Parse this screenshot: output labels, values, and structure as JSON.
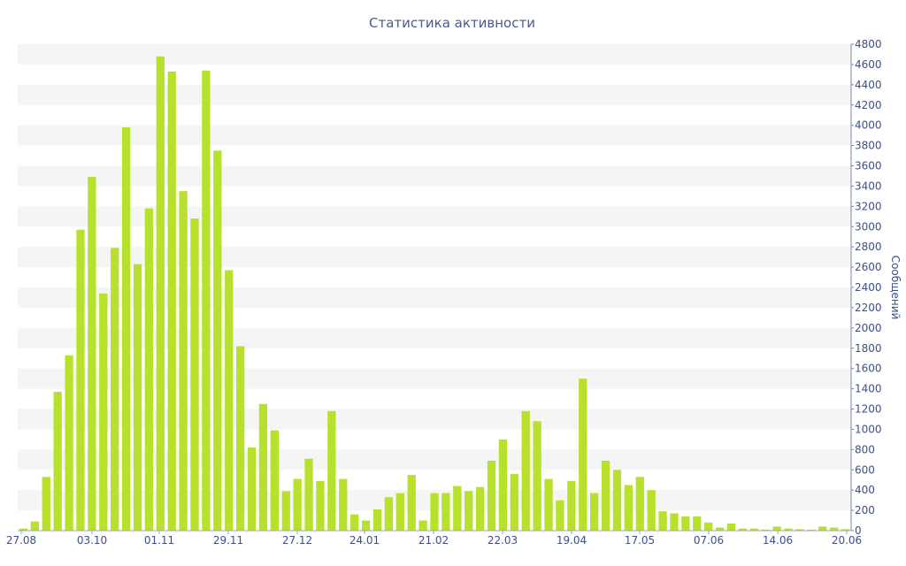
{
  "chart_data": {
    "type": "bar",
    "title": "Статистика активности",
    "xlabel": "",
    "ylabel": "Сообщений",
    "ylim": [
      0,
      4800
    ],
    "y_ticks": [
      0,
      200,
      400,
      600,
      800,
      1000,
      1200,
      1400,
      1600,
      1800,
      2000,
      2200,
      2400,
      2600,
      2800,
      3000,
      3200,
      3400,
      3600,
      3800,
      4000,
      4200,
      4400,
      4600,
      4800
    ],
    "x_tick_labels": [
      "27.08",
      "03.10",
      "01.11",
      "29.11",
      "27.12",
      "24.01",
      "21.02",
      "22.03",
      "19.04",
      "17.05",
      "07.06",
      "14.06",
      "20.06"
    ],
    "y_axis_side": "right",
    "grid": "alternating horizontal bands",
    "bar_color": "#b8e12d",
    "values": [
      20,
      90,
      530,
      1370,
      1730,
      2970,
      3490,
      2340,
      2790,
      3980,
      2630,
      3180,
      4680,
      4530,
      3350,
      3080,
      4540,
      3750,
      2570,
      1820,
      820,
      1250,
      990,
      390,
      510,
      710,
      490,
      1180,
      510,
      160,
      100,
      210,
      330,
      370,
      550,
      100,
      370,
      370,
      440,
      390,
      430,
      690,
      900,
      560,
      1180,
      1080,
      510,
      300,
      490,
      1500,
      370,
      690,
      600,
      450,
      530,
      400,
      190,
      170,
      140,
      140,
      80,
      30,
      70,
      20,
      20,
      10,
      40,
      20,
      15,
      10,
      40,
      30,
      15
    ]
  }
}
